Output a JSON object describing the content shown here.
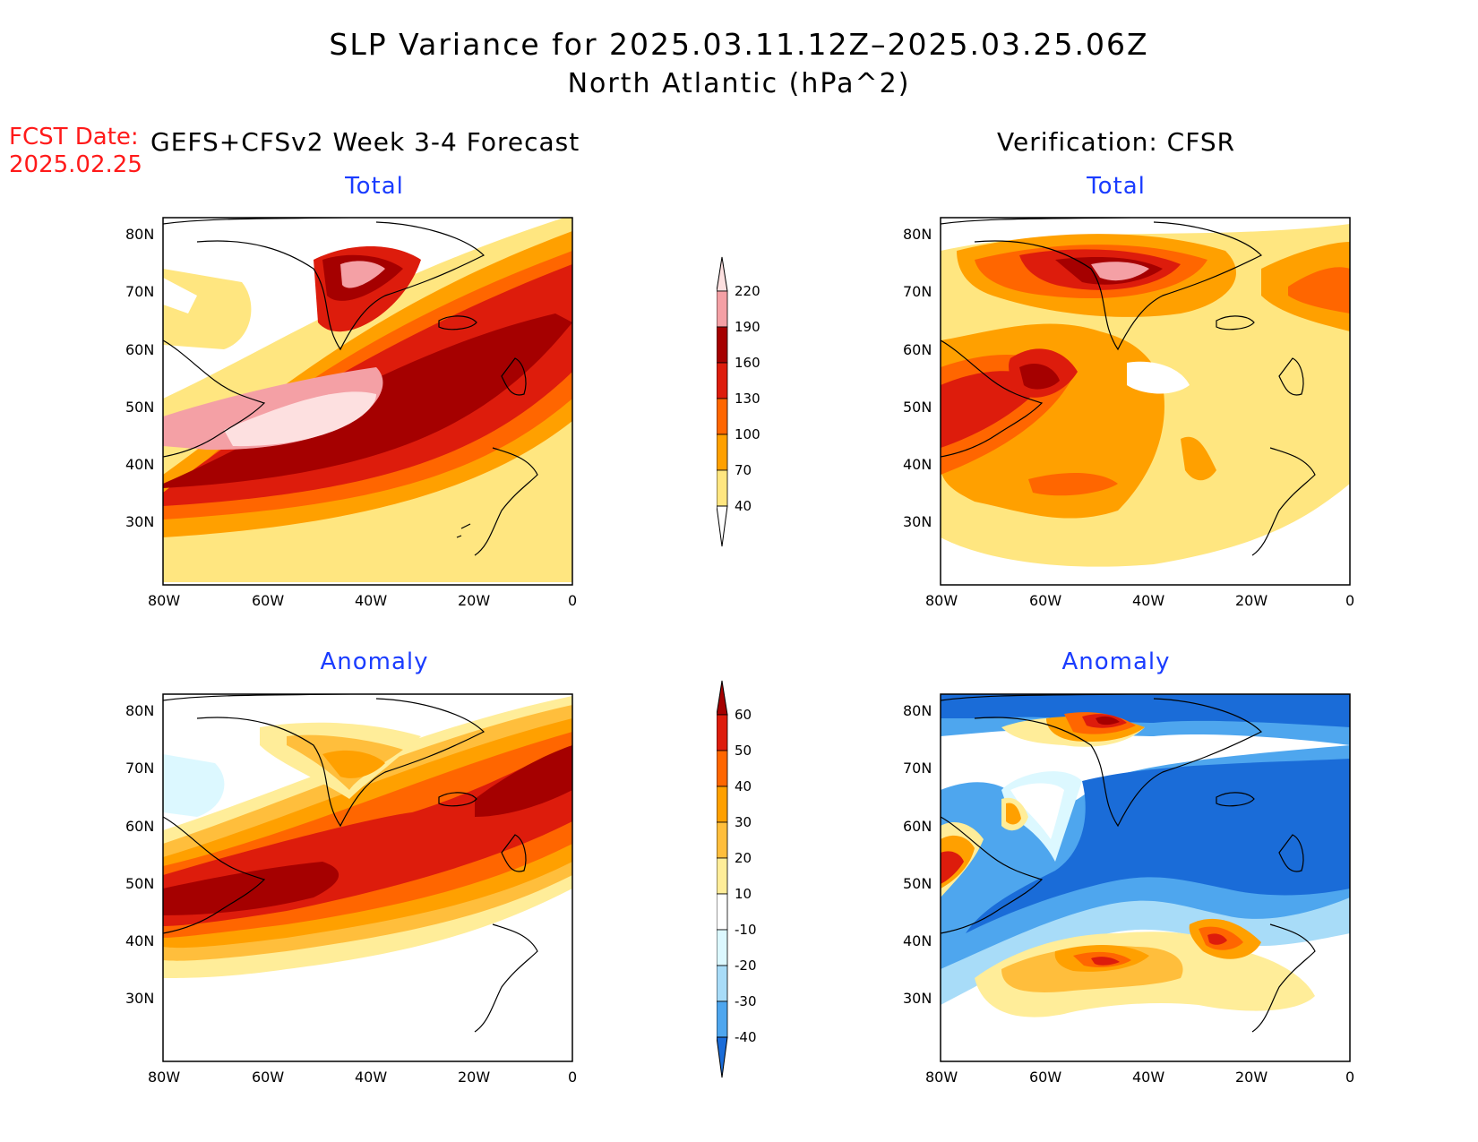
{
  "header": {
    "title_line1": "SLP Variance for 2025.03.11.12Z–2025.03.25.06Z",
    "title_line2": "North Atlantic (hPa^2)",
    "fcst_label": "FCST Date:",
    "fcst_date": "2025.02.25",
    "left_heading": "GEFS+CFSv2 Week 3-4 Forecast",
    "right_heading": "Verification: CFSR"
  },
  "panels": {
    "fcst_total_title": "Total",
    "fcst_anom_title": "Anomaly",
    "ver_total_title": "Total",
    "ver_anom_title": "Anomaly"
  },
  "axes": {
    "lat_labels": [
      "80N",
      "70N",
      "60N",
      "50N",
      "40N",
      "30N"
    ],
    "lon_labels": [
      "80W",
      "60W",
      "40W",
      "20W",
      "0"
    ]
  },
  "colorbars": {
    "total": {
      "labels": [
        "220",
        "190",
        "160",
        "130",
        "100",
        "70",
        "40"
      ],
      "colors": [
        "#fde0e0",
        "#f4a0a5",
        "#a50000",
        "#dd1c0c",
        "#ff6600",
        "#ffa000",
        "#ffe680"
      ]
    },
    "anomaly": {
      "labels": [
        "60",
        "50",
        "40",
        "30",
        "20",
        "10",
        "-10",
        "-20",
        "-30",
        "-40"
      ],
      "colors": [
        "#a50000",
        "#dd1c0c",
        "#ff6600",
        "#ffa000",
        "#ffbe3c",
        "#ffed99",
        "#ffffff",
        "#dcf8ff",
        "#a8dcf8",
        "#4ea6ee",
        "#1a6cd8"
      ]
    }
  },
  "chart_data": [
    {
      "type": "heatmap",
      "title": "Total",
      "subtitle": "GEFS+CFSv2 Week 3-4 Forecast",
      "units": "hPa^2",
      "levels": [
        40,
        70,
        100,
        130,
        160,
        190,
        220
      ],
      "xlim": [
        -80,
        0
      ],
      "ylim": [
        25,
        85
      ]
    },
    {
      "type": "heatmap",
      "title": "Total",
      "subtitle": "Verification: CFSR",
      "units": "hPa^2",
      "levels": [
        40,
        70,
        100,
        130,
        160,
        190,
        220
      ],
      "xlim": [
        -80,
        0
      ],
      "ylim": [
        25,
        85
      ]
    },
    {
      "type": "heatmap",
      "title": "Anomaly",
      "subtitle": "GEFS+CFSv2 Week 3-4 Forecast",
      "units": "hPa^2",
      "levels": [
        -40,
        -30,
        -20,
        -10,
        10,
        20,
        30,
        40,
        50,
        60
      ],
      "xlim": [
        -80,
        0
      ],
      "ylim": [
        25,
        85
      ]
    },
    {
      "type": "heatmap",
      "title": "Anomaly",
      "subtitle": "Verification: CFSR",
      "units": "hPa^2",
      "levels": [
        -40,
        -30,
        -20,
        -10,
        10,
        20,
        30,
        40,
        50,
        60
      ],
      "xlim": [
        -80,
        0
      ],
      "ylim": [
        25,
        85
      ]
    }
  ]
}
